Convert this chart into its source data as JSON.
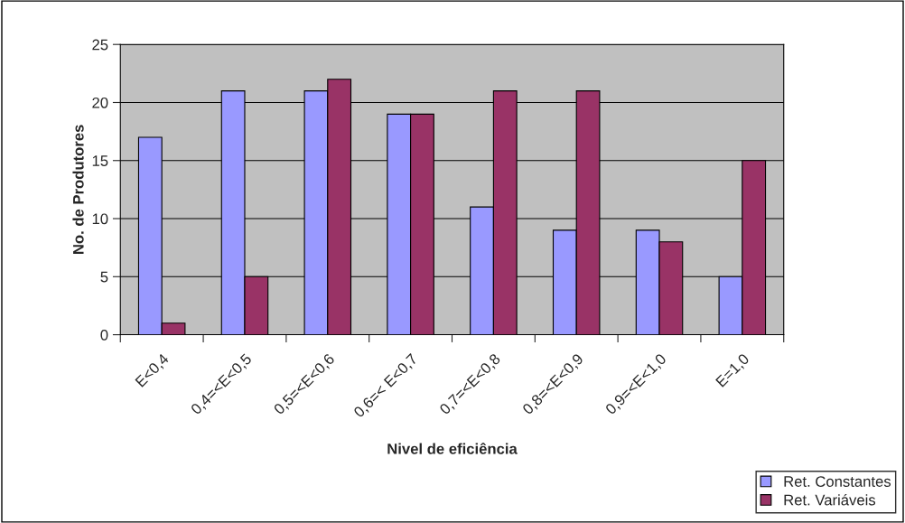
{
  "chart_data": {
    "type": "bar",
    "xlabel": "Nivel de eficiência",
    "ylabel": "No. de Produtores",
    "categories": [
      "E<0,4",
      "0,4=<E<0,5",
      "0,5=<E<0,6",
      "0,6=< E<0,7",
      "0,7=<E<0,8",
      "0,8=<E<0,9",
      "0,9=<E<1,0",
      "E=1,0"
    ],
    "series": [
      {
        "name": "Ret. Constantes",
        "color": "#9999ff",
        "values": [
          17,
          21,
          21,
          19,
          11,
          9,
          9,
          5
        ]
      },
      {
        "name": "Ret. Variáveis",
        "color": "#993366",
        "values": [
          1,
          5,
          22,
          19,
          21,
          21,
          8,
          15
        ]
      }
    ],
    "ylim": [
      0,
      25
    ],
    "yticks": [
      0,
      5,
      10,
      15,
      20,
      25
    ],
    "grid": "y",
    "legend": "bottom right"
  }
}
